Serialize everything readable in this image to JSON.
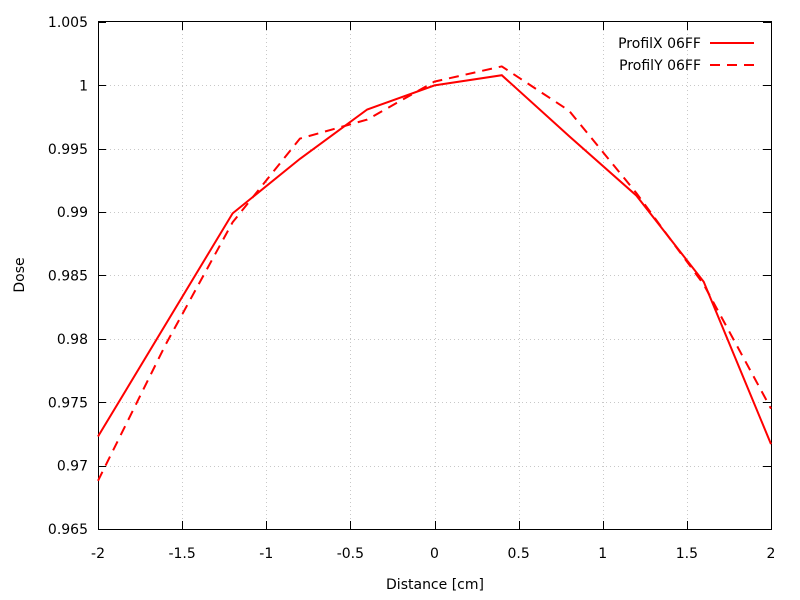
{
  "chart_data": {
    "type": "line",
    "xlabel": "Distance [cm]",
    "ylabel": "Dose",
    "xlim": [
      -2,
      2
    ],
    "ylim": [
      0.965,
      1.005
    ],
    "grid": true,
    "legend_position": "top-right",
    "x_ticks": [
      "-2",
      "-1.5",
      "-1",
      "-0.5",
      "0",
      "0.5",
      "1",
      "1.5",
      "2"
    ],
    "x_tick_values": [
      -2,
      -1.5,
      -1,
      -0.5,
      0,
      0.5,
      1,
      1.5,
      2
    ],
    "y_ticks": [
      "0.965",
      "0.97",
      "0.975",
      "0.98",
      "0.985",
      "0.99",
      "0.995",
      "1",
      "1.005"
    ],
    "y_tick_values": [
      0.965,
      0.97,
      0.975,
      0.98,
      0.985,
      0.99,
      0.995,
      1.0,
      1.005
    ],
    "series": [
      {
        "name": "ProfilX 06FF",
        "style": "solid",
        "color": "#ff0000",
        "x": [
          -2,
          -1.2,
          -0.8,
          -0.4,
          0,
          0.4,
          0.8,
          1.2,
          1.6,
          2
        ],
        "y": [
          0.9723,
          0.9899,
          0.9942,
          0.9981,
          1.0,
          1.0008,
          0.996,
          0.9913,
          0.9845,
          0.9717
        ]
      },
      {
        "name": "ProfilY 06FF",
        "style": "dashed",
        "color": "#ff0000",
        "x": [
          -2,
          -1.6,
          -1.2,
          -0.8,
          -0.4,
          0,
          0.4,
          0.8,
          1.2,
          1.6,
          2
        ],
        "y": [
          0.9688,
          0.9795,
          0.9892,
          0.9958,
          0.9973,
          1.0003,
          1.0015,
          0.998,
          0.9915,
          0.9843,
          0.9745
        ]
      }
    ]
  }
}
